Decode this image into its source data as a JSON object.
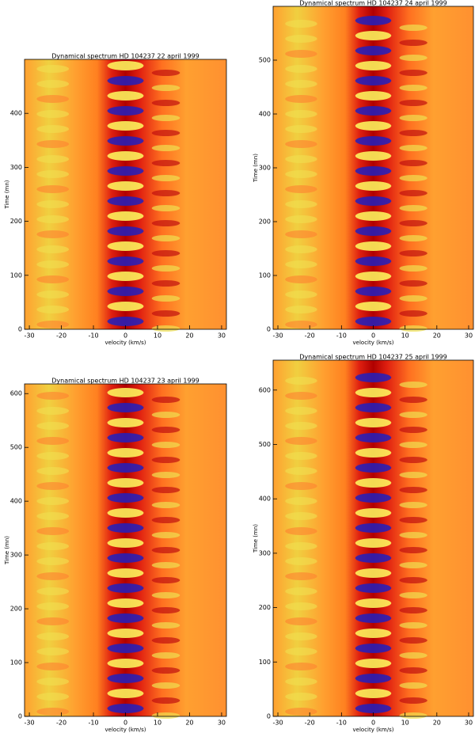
{
  "chart_data": [
    {
      "type": "heatmap",
      "title": "Dynamical spectrum   HD 104237   22 april 1999",
      "x_label": "velocity (km/s)",
      "y_label": "Time (mn)",
      "xlim": [
        -31.5,
        31.5
      ],
      "xticks": [
        -30,
        -20,
        -10,
        0,
        10,
        20,
        30
      ],
      "ylim": [
        0,
        500
      ],
      "yticks": [
        0,
        100,
        200,
        300,
        400
      ]
    },
    {
      "type": "heatmap",
      "title": "Dynamical spectrum   HD 104237   24 april 1999",
      "x_label": "velocity (km/s)",
      "y_label": "Time (mn)",
      "xlim": [
        -31.5,
        31.5
      ],
      "xticks": [
        -30,
        -20,
        -10,
        0,
        10,
        20,
        30
      ],
      "ylim": [
        0,
        600
      ],
      "yticks": [
        0,
        100,
        200,
        300,
        400,
        500
      ]
    },
    {
      "type": "heatmap",
      "title": "Dynamical spectrum   HD 104237   23 april 1999",
      "x_label": "velocity (km/s)",
      "y_label": "Time (mn)",
      "xlim": [
        -31.5,
        31.5
      ],
      "xticks": [
        -30,
        -20,
        -10,
        0,
        10,
        20,
        30
      ],
      "ylim": [
        0,
        618
      ],
      "yticks": [
        0,
        100,
        200,
        300,
        400,
        500,
        600
      ]
    },
    {
      "type": "heatmap",
      "title": "Dynamical spectrum   HD 104237   25 april 1999",
      "x_label": "velocity (km/s)",
      "y_label": "Time (mn)",
      "xlim": [
        -31.5,
        31.5
      ],
      "xticks": [
        -30,
        -20,
        -10,
        0,
        10,
        20,
        30
      ],
      "ylim": [
        0,
        655
      ],
      "yticks": [
        0,
        100,
        200,
        300,
        400,
        500,
        600
      ]
    }
  ]
}
